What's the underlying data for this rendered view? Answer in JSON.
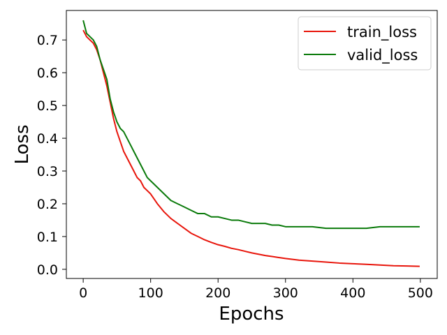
{
  "chart_data": {
    "type": "line",
    "title": "",
    "xlabel": "Epochs",
    "ylabel": "Loss",
    "xlim": [
      -25,
      525
    ],
    "ylim": [
      -0.028,
      0.79
    ],
    "xticks": [
      0,
      100,
      200,
      300,
      400,
      500
    ],
    "yticks": [
      0.0,
      0.1,
      0.2,
      0.3,
      0.4,
      0.5,
      0.6,
      0.7
    ],
    "ytick_labels": [
      "0.0",
      "0.1",
      "0.2",
      "0.3",
      "0.4",
      "0.5",
      "0.6",
      "0.7"
    ],
    "legend": {
      "position": "top-right"
    },
    "grid": false,
    "series": [
      {
        "name": "train_loss",
        "color": "#e8150b",
        "x": [
          0,
          5,
          10,
          15,
          20,
          25,
          30,
          35,
          40,
          45,
          50,
          55,
          60,
          65,
          70,
          75,
          80,
          85,
          90,
          95,
          100,
          110,
          120,
          130,
          140,
          150,
          160,
          170,
          180,
          190,
          200,
          210,
          220,
          230,
          240,
          250,
          260,
          270,
          280,
          290,
          300,
          320,
          340,
          360,
          380,
          400,
          420,
          440,
          460,
          480,
          499
        ],
        "values": [
          0.73,
          0.71,
          0.7,
          0.69,
          0.67,
          0.64,
          0.6,
          0.56,
          0.51,
          0.46,
          0.42,
          0.39,
          0.36,
          0.34,
          0.32,
          0.3,
          0.28,
          0.27,
          0.25,
          0.24,
          0.23,
          0.2,
          0.175,
          0.155,
          0.14,
          0.125,
          0.11,
          0.1,
          0.09,
          0.082,
          0.075,
          0.07,
          0.064,
          0.06,
          0.055,
          0.05,
          0.046,
          0.042,
          0.039,
          0.036,
          0.033,
          0.028,
          0.025,
          0.022,
          0.019,
          0.017,
          0.015,
          0.013,
          0.011,
          0.01,
          0.009
        ]
      },
      {
        "name": "valid_loss",
        "color": "#0a7a0a",
        "x": [
          0,
          5,
          10,
          15,
          20,
          25,
          30,
          35,
          40,
          45,
          50,
          55,
          60,
          65,
          70,
          75,
          80,
          85,
          90,
          95,
          100,
          110,
          120,
          130,
          140,
          150,
          160,
          170,
          180,
          190,
          200,
          210,
          220,
          230,
          240,
          250,
          260,
          270,
          280,
          290,
          300,
          320,
          340,
          360,
          380,
          400,
          420,
          440,
          460,
          480,
          499
        ],
        "values": [
          0.76,
          0.72,
          0.71,
          0.7,
          0.68,
          0.64,
          0.61,
          0.58,
          0.52,
          0.48,
          0.45,
          0.43,
          0.42,
          0.4,
          0.38,
          0.36,
          0.34,
          0.32,
          0.3,
          0.28,
          0.27,
          0.25,
          0.23,
          0.21,
          0.2,
          0.19,
          0.18,
          0.17,
          0.17,
          0.16,
          0.16,
          0.155,
          0.15,
          0.15,
          0.145,
          0.14,
          0.14,
          0.14,
          0.135,
          0.135,
          0.13,
          0.13,
          0.13,
          0.125,
          0.125,
          0.125,
          0.125,
          0.13,
          0.13,
          0.13,
          0.13
        ]
      }
    ]
  }
}
